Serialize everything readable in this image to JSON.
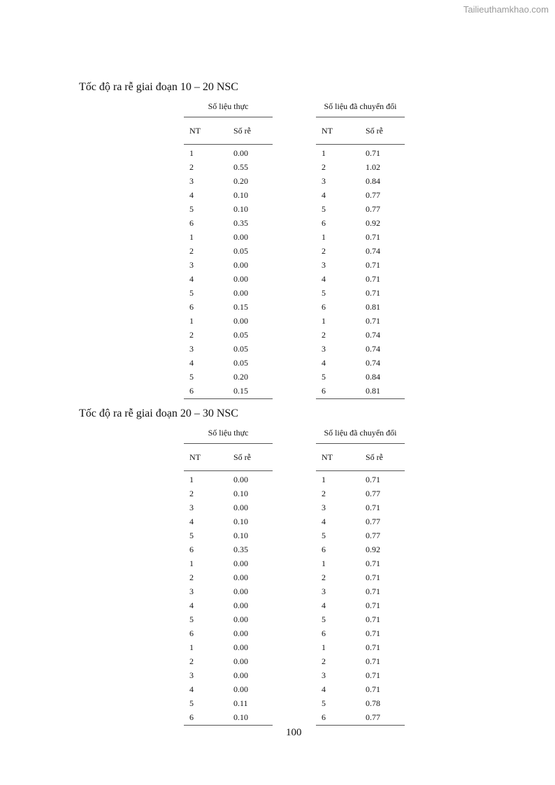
{
  "watermark": "Tailieuthamkhao.com",
  "page_number": "100",
  "sections": [
    {
      "title": "Tốc độ ra rễ giai đoạn 10 – 20 NSC",
      "tables": [
        {
          "caption": "Số liệu thực",
          "headers": [
            "NT",
            "Số rễ"
          ],
          "rows": [
            [
              "1",
              "0.00"
            ],
            [
              "2",
              "0.55"
            ],
            [
              "3",
              "0.20"
            ],
            [
              "4",
              "0.10"
            ],
            [
              "5",
              "0.10"
            ],
            [
              "6",
              "0.35"
            ],
            [
              "1",
              "0.00"
            ],
            [
              "2",
              "0.05"
            ],
            [
              "3",
              "0.00"
            ],
            [
              "4",
              "0.00"
            ],
            [
              "5",
              "0.00"
            ],
            [
              "6",
              "0.15"
            ],
            [
              "1",
              "0.00"
            ],
            [
              "2",
              "0.05"
            ],
            [
              "3",
              "0.05"
            ],
            [
              "4",
              "0.05"
            ],
            [
              "5",
              "0.20"
            ],
            [
              "6",
              "0.15"
            ]
          ]
        },
        {
          "caption": "Số liệu đã chuyển đổi",
          "headers": [
            "NT",
            "Số rễ"
          ],
          "rows": [
            [
              "1",
              "0.71"
            ],
            [
              "2",
              "1.02"
            ],
            [
              "3",
              "0.84"
            ],
            [
              "4",
              "0.77"
            ],
            [
              "5",
              "0.77"
            ],
            [
              "6",
              "0.92"
            ],
            [
              "1",
              "0.71"
            ],
            [
              "2",
              "0.74"
            ],
            [
              "3",
              "0.71"
            ],
            [
              "4",
              "0.71"
            ],
            [
              "5",
              "0.71"
            ],
            [
              "6",
              "0.81"
            ],
            [
              "1",
              "0.71"
            ],
            [
              "2",
              "0.74"
            ],
            [
              "3",
              "0.74"
            ],
            [
              "4",
              "0.74"
            ],
            [
              "5",
              "0.84"
            ],
            [
              "6",
              "0.81"
            ]
          ]
        }
      ]
    },
    {
      "title": "Tốc độ ra rễ giai đoạn 20 – 30 NSC",
      "tables": [
        {
          "caption": "Số liệu thực",
          "headers": [
            "NT",
            "Số rễ"
          ],
          "rows": [
            [
              "1",
              "0.00"
            ],
            [
              "2",
              "0.10"
            ],
            [
              "3",
              "0.00"
            ],
            [
              "4",
              "0.10"
            ],
            [
              "5",
              "0.10"
            ],
            [
              "6",
              "0.35"
            ],
            [
              "1",
              "0.00"
            ],
            [
              "2",
              "0.00"
            ],
            [
              "3",
              "0.00"
            ],
            [
              "4",
              "0.00"
            ],
            [
              "5",
              "0.00"
            ],
            [
              "6",
              "0.00"
            ],
            [
              "1",
              "0.00"
            ],
            [
              "2",
              "0.00"
            ],
            [
              "3",
              "0.00"
            ],
            [
              "4",
              "0.00"
            ],
            [
              "5",
              "0.11"
            ],
            [
              "6",
              "0.10"
            ]
          ]
        },
        {
          "caption": "Số liệu đã chuyển đổi",
          "headers": [
            "NT",
            "Số rễ"
          ],
          "rows": [
            [
              "1",
              "0.71"
            ],
            [
              "2",
              "0.77"
            ],
            [
              "3",
              "0.71"
            ],
            [
              "4",
              "0.77"
            ],
            [
              "5",
              "0.77"
            ],
            [
              "6",
              "0.92"
            ],
            [
              "1",
              "0.71"
            ],
            [
              "2",
              "0.71"
            ],
            [
              "3",
              "0.71"
            ],
            [
              "4",
              "0.71"
            ],
            [
              "5",
              "0.71"
            ],
            [
              "6",
              "0.71"
            ],
            [
              "1",
              "0.71"
            ],
            [
              "2",
              "0.71"
            ],
            [
              "3",
              "0.71"
            ],
            [
              "4",
              "0.71"
            ],
            [
              "5",
              "0.78"
            ],
            [
              "6",
              "0.77"
            ]
          ]
        }
      ]
    }
  ]
}
